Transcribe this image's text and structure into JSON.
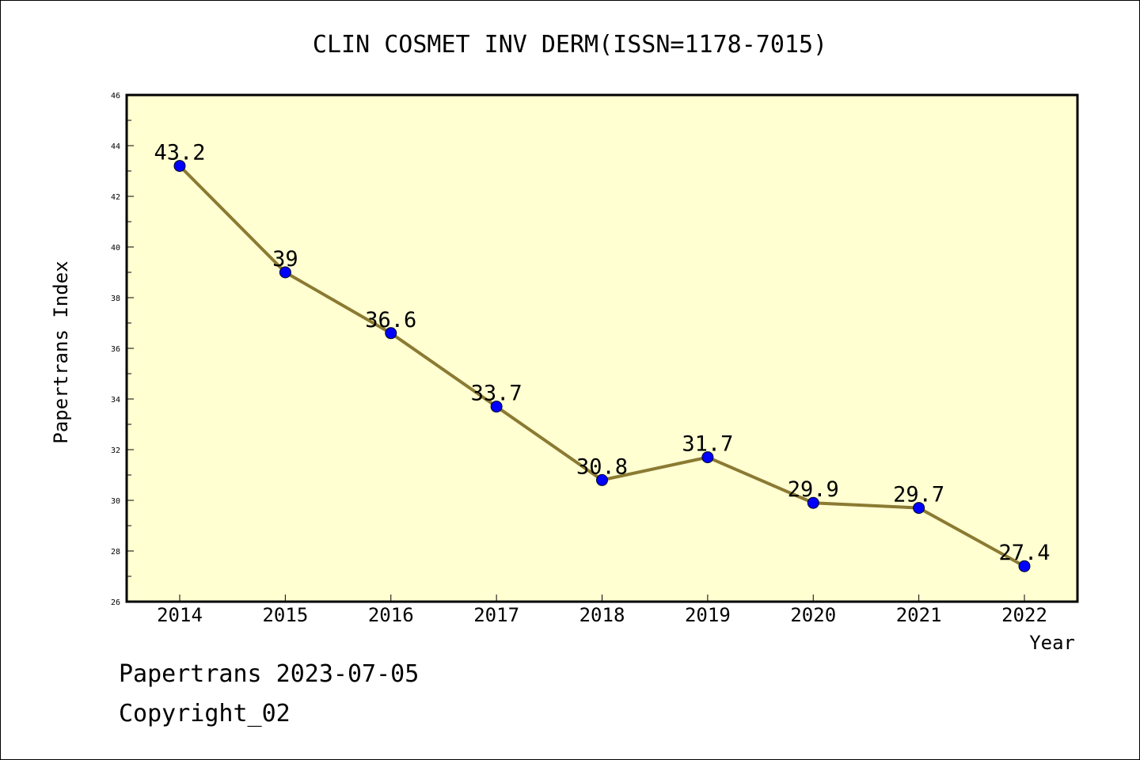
{
  "chart_data": {
    "type": "line",
    "title": "CLIN COSMET INV DERM(ISSN=1178-7015)",
    "xlabel": "Year",
    "ylabel": "Papertrans Index",
    "categories": [
      "2014",
      "2015",
      "2016",
      "2017",
      "2018",
      "2019",
      "2020",
      "2021",
      "2022"
    ],
    "series": [
      {
        "values": [
          43.2,
          39,
          36.6,
          33.7,
          30.8,
          31.7,
          29.9,
          29.7,
          27.4
        ],
        "labels": [
          "43.2",
          "39",
          "36.6",
          "33.7",
          "30.8",
          "31.7",
          "29.9",
          "29.7",
          "27.4"
        ]
      }
    ],
    "ylim": [
      26,
      46
    ],
    "yticks": [
      "26",
      "28",
      "30",
      "32",
      "34",
      "36",
      "38",
      "40",
      "42",
      "44",
      "46"
    ],
    "grid": false,
    "colors": {
      "plot_background": "#ffffd2",
      "line": "#8b7a32",
      "marker": "#0000ff"
    }
  },
  "footer": {
    "line1": "Papertrans 2023-07-05",
    "line2": "Copyright_02"
  }
}
